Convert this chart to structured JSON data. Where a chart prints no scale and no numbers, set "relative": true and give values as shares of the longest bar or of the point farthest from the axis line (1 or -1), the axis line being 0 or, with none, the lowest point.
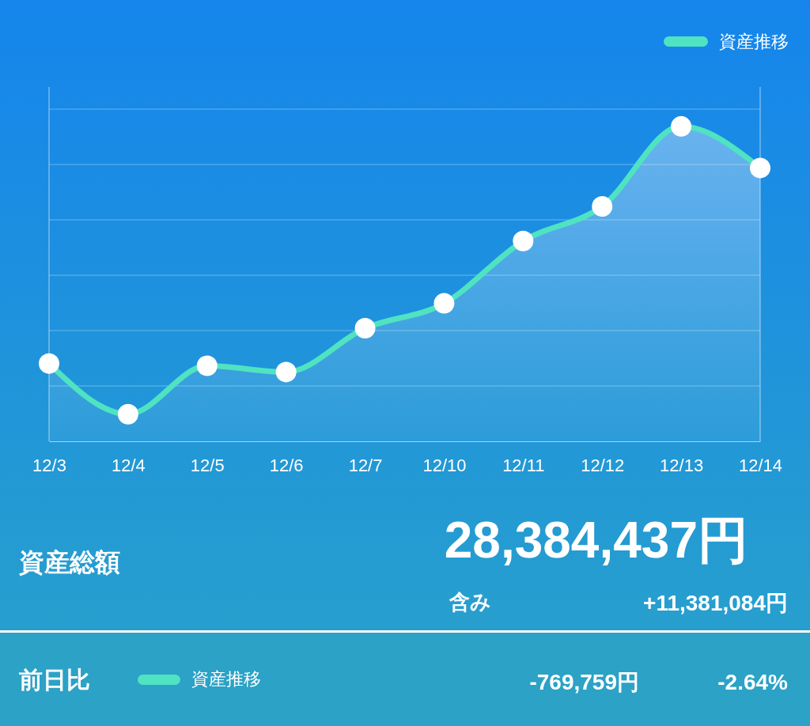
{
  "chart_data": {
    "type": "area",
    "categories": [
      "12/3",
      "12/4",
      "12/5",
      "12/6",
      "12/7",
      "12/10",
      "12/11",
      "12/12",
      "12/13",
      "12/14"
    ],
    "series": [
      {
        "name": "資産推移",
        "color": "#4fe3c1",
        "values": [
          0.247,
          0.086,
          0.24,
          0.22,
          0.359,
          0.438,
          0.636,
          0.746,
          1,
          0.868
        ]
      }
    ],
    "relative": true,
    "grid": true,
    "legend": "top right",
    "marker": "circle",
    "annotations": [
      "資産総額",
      "28,384,437円",
      "含み",
      "+11,381,084円",
      "前日比",
      "資産推移",
      "-769,759円",
      "-2.64%"
    ]
  }
}
